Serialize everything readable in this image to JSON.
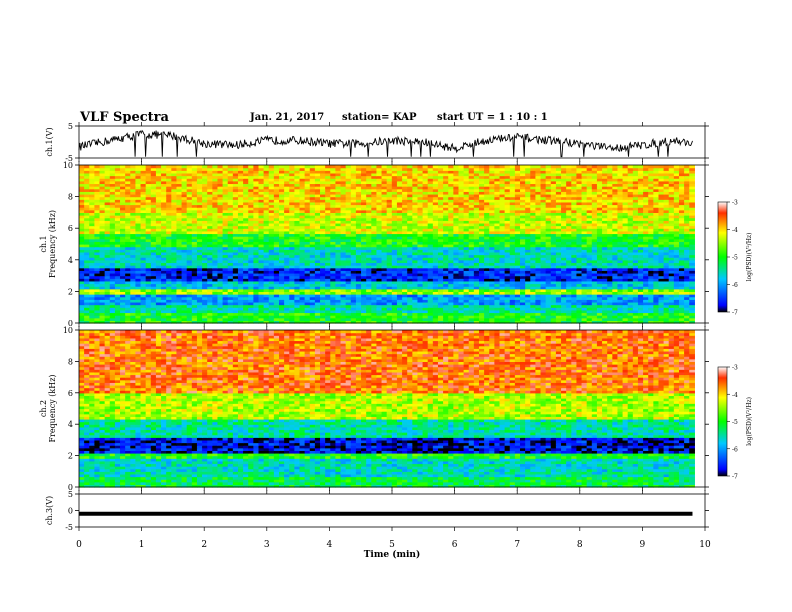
{
  "header": {
    "title": "VLF Spectra",
    "date": "Jan. 21, 2017",
    "station": "station= KAP",
    "start": "start UT =  1 : 10 : 1"
  },
  "chart_data": [
    {
      "type": "line",
      "ylabel": "ch.1(V)",
      "ylim": [
        -5,
        5
      ],
      "yticks": [
        "5",
        "-5"
      ],
      "xlim": [
        0,
        10
      ],
      "description_level": "noisy waveform around 0 V with slow oscillation",
      "x": [
        0,
        0.5,
        1,
        1.5,
        2,
        2.5,
        3,
        3.5,
        4,
        4.5,
        5,
        5.5,
        6,
        6.5,
        7,
        7.5,
        8,
        8.5,
        9,
        9.5,
        9.8
      ],
      "values": [
        -1.5,
        0.5,
        2.5,
        2.0,
        -0.5,
        -1.0,
        0.5,
        0.5,
        -0.5,
        -0.5,
        0.5,
        0.0,
        -2.0,
        0.5,
        1.5,
        0.5,
        -0.5,
        -2.0,
        -1.0,
        0.5,
        -0.5
      ],
      "color": "#000000"
    },
    {
      "type": "heatmap",
      "ylabel": "ch.1\nFrequency (kHz)",
      "ylim": [
        0,
        10
      ],
      "yticks": [
        "0",
        "2",
        "4",
        "6",
        "8",
        "10"
      ],
      "xlim": [
        0,
        10
      ],
      "colorbar": {
        "label": "log(PSD)(V²/Hz)",
        "range": [
          -7,
          -3
        ],
        "ticks": [
          "-3",
          "-4",
          "-5",
          "-6",
          "-7"
        ]
      },
      "bands_khz": [
        [
          0,
          0.6,
          -5.0
        ],
        [
          0.6,
          1.2,
          -5.5
        ],
        [
          1.2,
          1.8,
          -6.0
        ],
        [
          1.8,
          2.2,
          -4.5
        ],
        [
          2.2,
          2.6,
          -5.8
        ],
        [
          2.6,
          3.5,
          -6.6
        ],
        [
          3.5,
          4.8,
          -5.6
        ],
        [
          4.8,
          5.6,
          -5.0
        ],
        [
          5.6,
          7.0,
          -4.3
        ],
        [
          7.0,
          10.0,
          -4.0
        ]
      ]
    },
    {
      "type": "heatmap",
      "ylabel": "ch.2\nFrequency (kHz)",
      "ylim": [
        0,
        10
      ],
      "yticks": [
        "0",
        "2",
        "4",
        "6",
        "8",
        "10"
      ],
      "xlim": [
        0,
        10
      ],
      "colorbar": {
        "label": "log(PSD)(V²/Hz)",
        "range": [
          -7,
          -3
        ],
        "ticks": [
          "-3",
          "-4",
          "-5",
          "-6",
          "-7"
        ]
      },
      "bands_khz": [
        [
          0,
          0.6,
          -5.2
        ],
        [
          0.6,
          1.8,
          -5.6
        ],
        [
          1.8,
          2.2,
          -5.0
        ],
        [
          2.2,
          3.2,
          -6.7
        ],
        [
          3.2,
          4.4,
          -5.5
        ],
        [
          4.4,
          6.0,
          -4.4
        ],
        [
          6.0,
          10.0,
          -3.6
        ]
      ]
    },
    {
      "type": "line",
      "ylabel": "ch.3(V)",
      "ylim": [
        -5,
        5
      ],
      "yticks": [
        "5",
        "0",
        "-5"
      ],
      "xlim": [
        0,
        10
      ],
      "x": [
        0,
        9.8
      ],
      "values": [
        -1,
        -1
      ],
      "color": "#000000",
      "xlabel": "Time (min)",
      "xticks": [
        "0",
        "1",
        "2",
        "3",
        "4",
        "5",
        "6",
        "7",
        "8",
        "9",
        "10"
      ]
    }
  ]
}
